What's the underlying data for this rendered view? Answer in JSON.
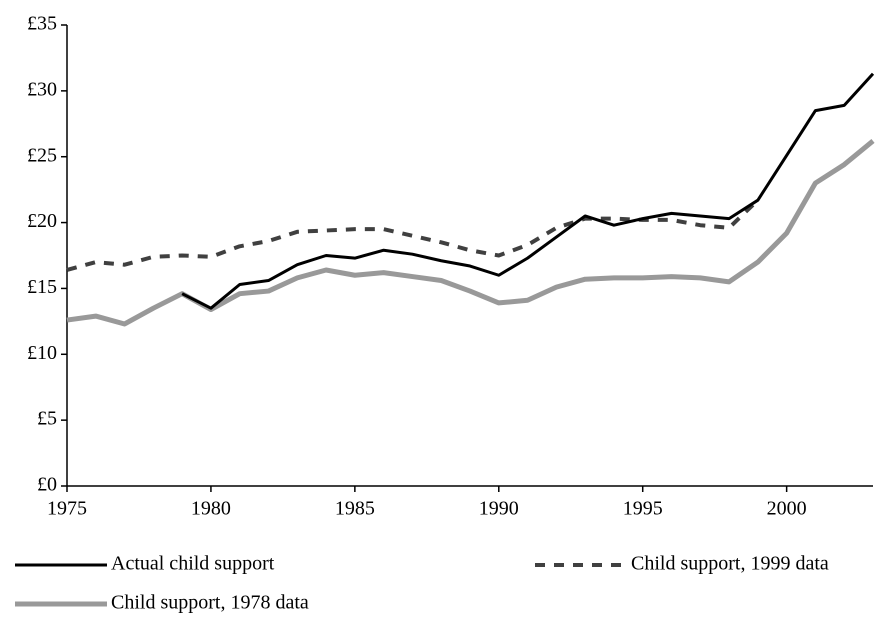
{
  "chart_data": {
    "type": "line",
    "x": [
      1975,
      1976,
      1977,
      1978,
      1979,
      1980,
      1981,
      1982,
      1983,
      1984,
      1985,
      1986,
      1987,
      1988,
      1989,
      1990,
      1991,
      1992,
      1993,
      1994,
      1995,
      1996,
      1997,
      1998,
      1999,
      2000,
      2001,
      2002,
      2003
    ],
    "series": [
      {
        "name": "Actual child support",
        "color": "#000000",
        "style": "solid",
        "values": [
          null,
          null,
          null,
          null,
          14.6,
          13.5,
          15.3,
          15.6,
          16.8,
          17.5,
          17.3,
          17.9,
          17.6,
          17.1,
          16.7,
          16.0,
          17.3,
          18.9,
          20.5,
          19.8,
          20.3,
          20.7,
          20.5,
          20.3,
          21.7,
          25.1,
          28.5,
          28.9,
          31.3
        ]
      },
      {
        "name": "Child support, 1999 data",
        "color": "#404040",
        "style": "dashed",
        "values": [
          16.4,
          17.0,
          16.8,
          17.4,
          17.5,
          17.4,
          18.2,
          18.6,
          19.3,
          19.4,
          19.5,
          19.5,
          19.0,
          18.5,
          17.9,
          17.5,
          18.3,
          19.6,
          20.3,
          20.3,
          20.2,
          20.2,
          19.8,
          19.6,
          21.7,
          null,
          null,
          null,
          null
        ]
      },
      {
        "name": "Child support, 1978 data",
        "color": "#999999",
        "style": "solid",
        "values": [
          12.6,
          12.9,
          12.3,
          13.5,
          14.6,
          13.4,
          14.6,
          14.8,
          15.8,
          16.4,
          16.0,
          16.2,
          15.9,
          15.6,
          14.8,
          13.9,
          14.1,
          15.1,
          15.7,
          15.8,
          15.8,
          15.9,
          15.8,
          15.5,
          17.0,
          19.2,
          23.0,
          24.4,
          26.2
        ]
      }
    ],
    "xlim": [
      1975,
      2003
    ],
    "xticks": [
      1975,
      1980,
      1985,
      1990,
      1995,
      2000
    ],
    "ylim": [
      0,
      35
    ],
    "yticks": [
      {
        "value": 0,
        "label": "£0"
      },
      {
        "value": 5,
        "label": "£5"
      },
      {
        "value": 10,
        "label": "£10"
      },
      {
        "value": 15,
        "label": "£15"
      },
      {
        "value": 20,
        "label": "£20"
      },
      {
        "value": 25,
        "label": "£25"
      },
      {
        "value": 30,
        "label": "£30"
      },
      {
        "value": 35,
        "label": "£35"
      }
    ],
    "grid": false,
    "legend": "bottom"
  }
}
